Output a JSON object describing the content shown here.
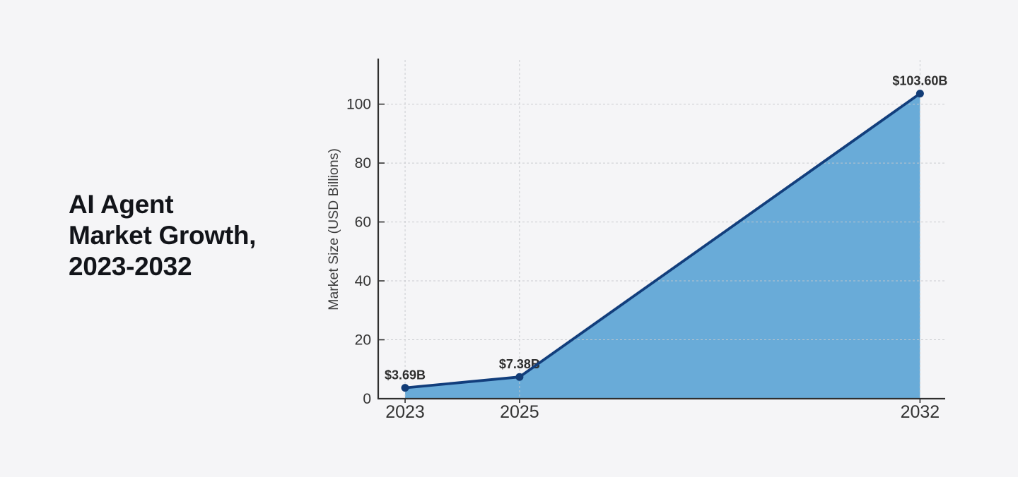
{
  "page": {
    "background_color": "#f5f5f7",
    "title_lines": [
      "AI Agent",
      "Market Growth,",
      "2023-2032"
    ]
  },
  "chart_data": {
    "type": "area",
    "title": "AI Agent Market Growth, 2023-2032",
    "xlabel": "",
    "ylabel": "Market Size (USD Billions)",
    "x": [
      2023,
      2025,
      2032
    ],
    "values": [
      3.69,
      7.38,
      103.6
    ],
    "point_labels": [
      "$3.69B",
      "$7.38B",
      "$103.60B"
    ],
    "x_ticks": [
      2023,
      2025,
      2032
    ],
    "x_tick_labels": [
      "2023",
      "2025",
      "2032"
    ],
    "y_ticks": [
      0,
      20,
      40,
      60,
      80,
      100
    ],
    "y_tick_labels": [
      "0",
      "20",
      "40",
      "60",
      "80",
      "100"
    ],
    "xlim": [
      2022.53,
      2032.44
    ],
    "ylim": [
      0,
      115
    ],
    "grid": true,
    "legend_position": "none",
    "colors": {
      "line": "#123e7c",
      "marker": "#123c76",
      "fill": "#69abd8",
      "grid": "#c6c8cc",
      "axis": "#2f2f2f",
      "tick_label": "#333333",
      "data_label": "#2e2e2e",
      "axis_label": "#3c3c3c"
    }
  }
}
